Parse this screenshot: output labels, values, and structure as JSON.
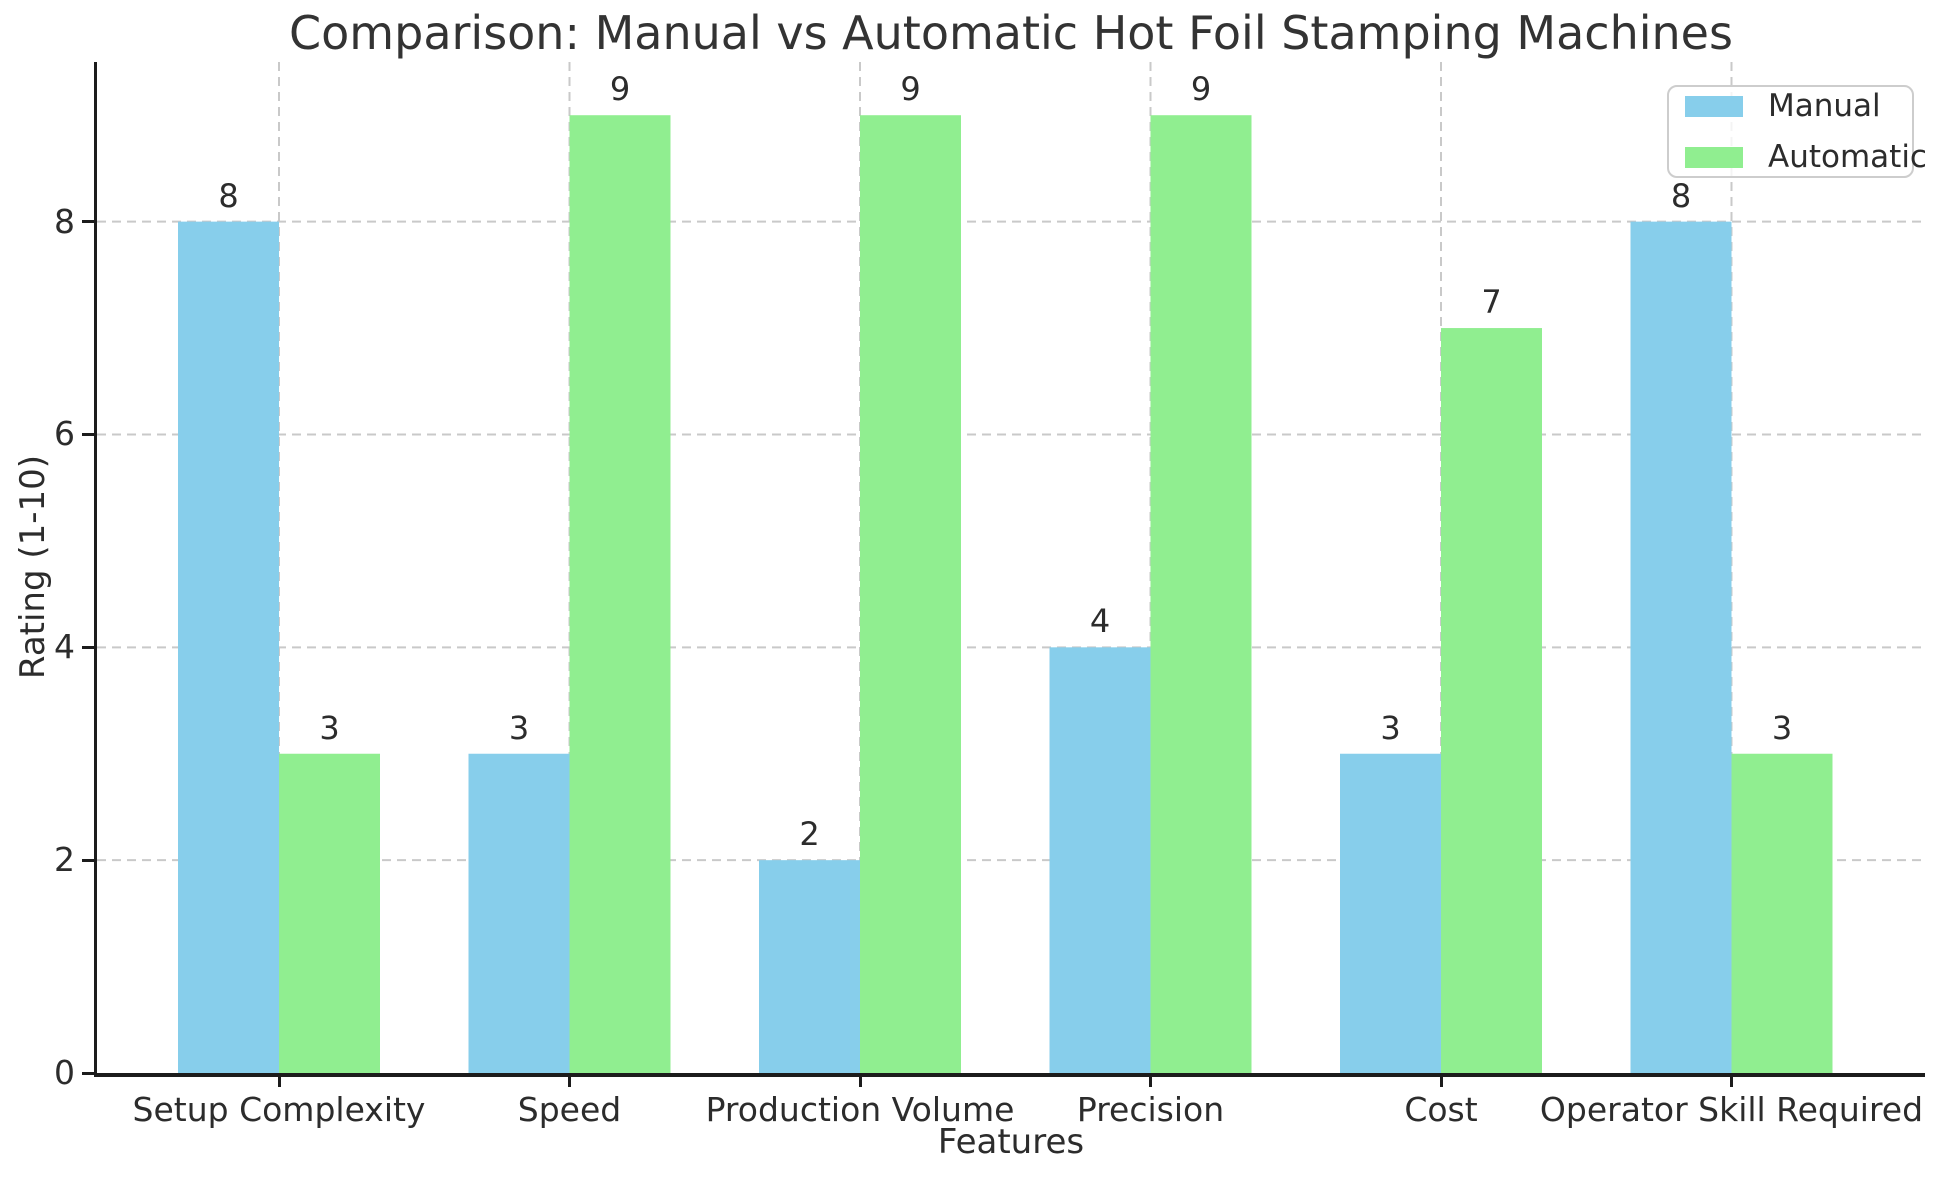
{
  "chart_data": {
    "type": "bar",
    "title": "Comparison: Manual vs Automatic Hot Foil Stamping Machines",
    "xlabel": "Features",
    "ylabel": "Rating (1-10)",
    "categories": [
      "Setup Complexity",
      "Speed",
      "Production Volume",
      "Precision",
      "Cost",
      "Operator Skill Required"
    ],
    "series": [
      {
        "name": "Manual",
        "color": "#87CEEB",
        "values": [
          8,
          3,
          2,
          4,
          3,
          8
        ]
      },
      {
        "name": "Automatic",
        "color": "#90EE90",
        "values": [
          3,
          9,
          9,
          9,
          7,
          3
        ]
      }
    ],
    "yticks": [
      0,
      2,
      4,
      6,
      8
    ],
    "ylim": [
      0,
      9.5
    ],
    "grid": "dashed",
    "grid_color": "#c9c9c9",
    "bar_value_labels": true,
    "legend_position": "upper right"
  }
}
